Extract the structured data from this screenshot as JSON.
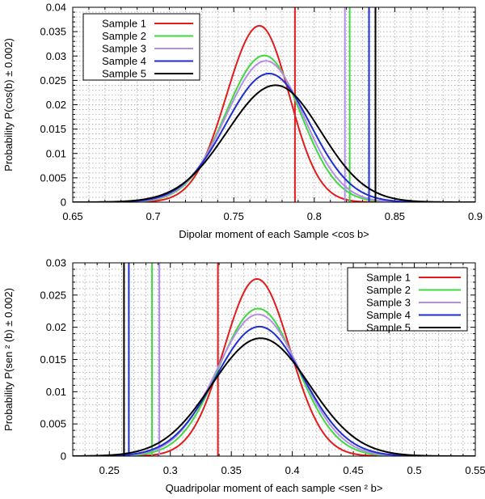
{
  "chart_data": [
    {
      "type": "line",
      "xlabel": "Dipolar moment of each Sample <cos b>",
      "ylabel": "Probability P(cos(b) ± 0.002)",
      "xlim": [
        0.65,
        0.9
      ],
      "ylim": [
        0,
        0.04
      ],
      "xticks": [
        0.65,
        0.7,
        0.75,
        0.8,
        0.85,
        0.9
      ],
      "xtick_labels": [
        "0.65",
        "0.7",
        "0.75",
        "0.8",
        "0.85",
        "0.9"
      ],
      "yticks": [
        0,
        0.005,
        0.01,
        0.015,
        0.02,
        0.025,
        0.03,
        0.035,
        0.04
      ],
      "ytick_labels": [
        "0",
        "0.005",
        "0.01",
        "0.015",
        "0.02",
        "0.025",
        "0.03",
        "0.035",
        "0.04"
      ],
      "grid": true,
      "legend_position": "top-left",
      "series": [
        {
          "name": "Sample 1",
          "color": "#e41a1c",
          "peak_x": 0.766,
          "peak_y": 0.0362,
          "sigma_left": 0.0205,
          "sigma_right": 0.0185,
          "vline": 0.788
        },
        {
          "name": "Sample 2",
          "color": "#3fd93f",
          "peak_x": 0.769,
          "peak_y": 0.0301,
          "sigma_left": 0.024,
          "sigma_right": 0.0225,
          "vline": 0.822
        },
        {
          "name": "Sample 3",
          "color": "#b48ee6",
          "peak_x": 0.77,
          "peak_y": 0.029,
          "sigma_left": 0.025,
          "sigma_right": 0.0235,
          "vline": 0.819
        },
        {
          "name": "Sample 4",
          "color": "#1f2ecf",
          "peak_x": 0.772,
          "peak_y": 0.0264,
          "sigma_left": 0.027,
          "sigma_right": 0.0255,
          "vline": 0.834
        },
        {
          "name": "Sample 5",
          "color": "#000000",
          "peak_x": 0.776,
          "peak_y": 0.024,
          "sigma_left": 0.03,
          "sigma_right": 0.028,
          "vline": 0.838
        }
      ]
    },
    {
      "type": "line",
      "xlabel": "Quadripolar moment of each sample <sen ² b>",
      "ylabel": "Probability P(sen ² (b) ± 0.002)",
      "xlim": [
        0.22,
        0.55
      ],
      "ylim": [
        0,
        0.03
      ],
      "xticks": [
        0.25,
        0.3,
        0.35,
        0.4,
        0.45,
        0.5,
        0.55
      ],
      "xtick_labels": [
        "0.25",
        "0.3",
        "0.35",
        "0.4",
        "0.45",
        "0.5",
        "0.55"
      ],
      "yticks": [
        0,
        0.005,
        0.01,
        0.015,
        0.02,
        0.025,
        0.03
      ],
      "ytick_labels": [
        "0",
        "0.005",
        "0.01",
        "0.015",
        "0.02",
        "0.025",
        "0.03"
      ],
      "grid": true,
      "legend_position": "top-right",
      "series": [
        {
          "name": "Sample 1",
          "color": "#e41a1c",
          "peak_x": 0.371,
          "peak_y": 0.0275,
          "sigma_left": 0.027,
          "sigma_right": 0.027,
          "vline": 0.339
        },
        {
          "name": "Sample 2",
          "color": "#3fd93f",
          "peak_x": 0.372,
          "peak_y": 0.0229,
          "sigma_left": 0.032,
          "sigma_right": 0.032,
          "vline": 0.285
        },
        {
          "name": "Sample 3",
          "color": "#b48ee6",
          "peak_x": 0.372,
          "peak_y": 0.022,
          "sigma_left": 0.034,
          "sigma_right": 0.034,
          "vline": 0.291
        },
        {
          "name": "Sample 4",
          "color": "#1f2ecf",
          "peak_x": 0.373,
          "peak_y": 0.0201,
          "sigma_left": 0.036,
          "sigma_right": 0.036,
          "vline": 0.266
        },
        {
          "name": "Sample 5",
          "color": "#000000",
          "peak_x": 0.374,
          "peak_y": 0.0183,
          "sigma_left": 0.04,
          "sigma_right": 0.04,
          "vline": 0.262
        }
      ]
    }
  ]
}
